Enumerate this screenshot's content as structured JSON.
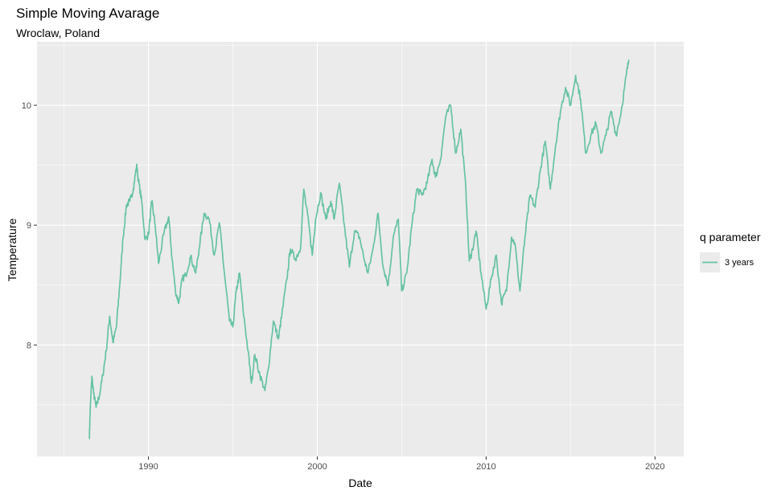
{
  "chart_data": {
    "type": "line",
    "title": "Simple Moving Avarage",
    "subtitle": "Wroclaw, Poland",
    "xlabel": "Date",
    "ylabel": "Temperature",
    "x_ticks": [
      "1990",
      "2000",
      "2010",
      "2020"
    ],
    "x_tick_years": [
      1990,
      2000,
      2010,
      2020
    ],
    "y_ticks": [
      "8",
      "9",
      "10"
    ],
    "y_tick_values": [
      8,
      9,
      10
    ],
    "xlim": [
      1983.4,
      2021.7
    ],
    "ylim": [
      7.07,
      10.53
    ],
    "grid": true,
    "legend": {
      "title": "q parameter",
      "position": "right"
    },
    "series": [
      {
        "name": "3 years",
        "color": "#66c2a5",
        "x": [
          1986.5,
          1986.55,
          1986.65,
          1986.75,
          1986.9,
          1987.1,
          1987.3,
          1987.5,
          1987.7,
          1987.9,
          1988.1,
          1988.3,
          1988.5,
          1988.7,
          1988.9,
          1989.1,
          1989.3,
          1989.4,
          1989.6,
          1989.8,
          1990.0,
          1990.2,
          1990.4,
          1990.6,
          1990.9,
          1991.2,
          1991.4,
          1991.6,
          1991.8,
          1992.0,
          1992.2,
          1992.5,
          1992.8,
          1993.0,
          1993.3,
          1993.6,
          1993.9,
          1994.2,
          1994.5,
          1994.8,
          1995.0,
          1995.2,
          1995.4,
          1995.6,
          1995.9,
          1996.1,
          1996.3,
          1996.6,
          1996.9,
          1997.1,
          1997.4,
          1997.7,
          1997.9,
          1998.2,
          1998.4,
          1998.7,
          1999.0,
          1999.2,
          1999.5,
          1999.7,
          1999.9,
          2000.2,
          2000.5,
          2000.8,
          2001.0,
          2001.3,
          2001.6,
          2001.9,
          2002.2,
          2002.5,
          2002.8,
          2003.0,
          2003.3,
          2003.6,
          2003.9,
          2004.2,
          2004.5,
          2004.8,
          2005.0,
          2005.3,
          2005.6,
          2005.9,
          2006.2,
          2006.5,
          2006.8,
          2007.0,
          2007.3,
          2007.6,
          2007.9,
          2008.2,
          2008.5,
          2008.8,
          2009.0,
          2009.2,
          2009.4,
          2009.7,
          2010.0,
          2010.3,
          2010.6,
          2010.9,
          2011.2,
          2011.5,
          2011.7,
          2012.0,
          2012.3,
          2012.6,
          2012.9,
          2013.2,
          2013.5,
          2013.8,
          2014.1,
          2014.4,
          2014.7,
          2015.0,
          2015.3,
          2015.6,
          2015.9,
          2016.2,
          2016.5,
          2016.8,
          2017.1,
          2017.4,
          2017.7,
          2018.0,
          2018.3,
          2018.45
        ],
        "values": [
          7.22,
          7.45,
          7.74,
          7.6,
          7.48,
          7.58,
          7.75,
          7.95,
          8.24,
          8.02,
          8.15,
          8.5,
          8.9,
          9.17,
          9.2,
          9.3,
          9.5,
          9.38,
          9.2,
          8.88,
          8.92,
          9.2,
          9.0,
          8.68,
          8.92,
          9.07,
          8.72,
          8.45,
          8.35,
          8.55,
          8.58,
          8.74,
          8.6,
          8.8,
          9.1,
          9.05,
          8.75,
          9.02,
          8.6,
          8.2,
          8.15,
          8.45,
          8.6,
          8.3,
          7.95,
          7.68,
          7.92,
          7.75,
          7.62,
          7.8,
          8.2,
          8.05,
          8.25,
          8.55,
          8.8,
          8.72,
          8.8,
          9.3,
          9.0,
          8.75,
          9.05,
          9.27,
          9.05,
          9.2,
          9.05,
          9.35,
          9.0,
          8.65,
          8.95,
          8.9,
          8.7,
          8.6,
          8.8,
          9.1,
          8.65,
          8.5,
          8.9,
          9.05,
          8.45,
          8.6,
          9.0,
          9.3,
          9.25,
          9.35,
          9.55,
          9.4,
          9.55,
          9.9,
          10.0,
          9.6,
          9.8,
          9.3,
          8.7,
          8.8,
          8.95,
          8.6,
          8.3,
          8.55,
          8.75,
          8.35,
          8.45,
          8.9,
          8.85,
          8.45,
          8.9,
          9.25,
          9.15,
          9.45,
          9.7,
          9.3,
          9.65,
          9.95,
          10.15,
          10.0,
          10.25,
          10.05,
          9.6,
          9.75,
          9.85,
          9.6,
          9.75,
          9.95,
          9.75,
          9.95,
          10.25,
          10.38
        ]
      }
    ]
  }
}
